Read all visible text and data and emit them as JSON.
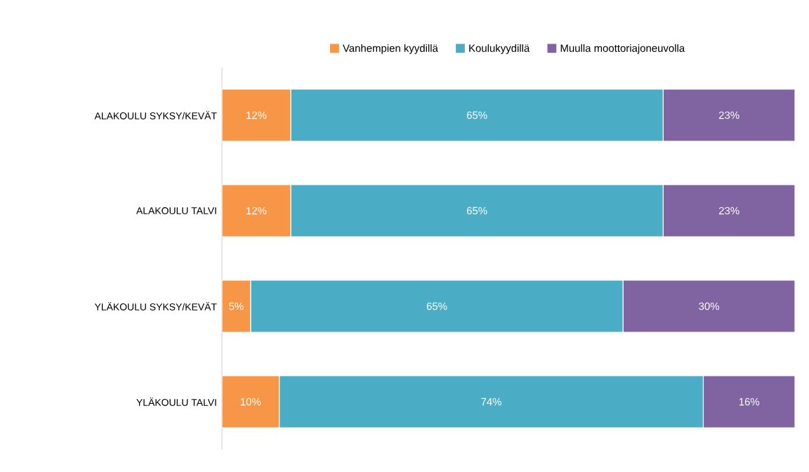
{
  "chart_data": {
    "type": "bar",
    "orientation": "horizontal",
    "stacked": true,
    "legend": "top",
    "categories": [
      "ALAKOULU SYKSY/KEVÄT",
      "ALAKOULU TALVI",
      "YLÄKOULU SYKSY/KEVÄT",
      "YLÄKOULU TALVI"
    ],
    "series": [
      {
        "name": "Vanhempien kyydillä",
        "color": "#f79646",
        "values": [
          12,
          12,
          5,
          10
        ],
        "value_labels": [
          "12%",
          "12%",
          "5%",
          "10%"
        ]
      },
      {
        "name": "Koulukyydillä",
        "color": "#4bacc6",
        "values": [
          65,
          65,
          65,
          74
        ],
        "value_labels": [
          "65%",
          "65%",
          "65%",
          "74%"
        ]
      },
      {
        "name": "Muulla moottoriajoneuvolla",
        "color": "#8064a2",
        "values": [
          23,
          23,
          30,
          16
        ],
        "value_labels": [
          "23%",
          "23%",
          "30%",
          "16%"
        ]
      }
    ]
  }
}
